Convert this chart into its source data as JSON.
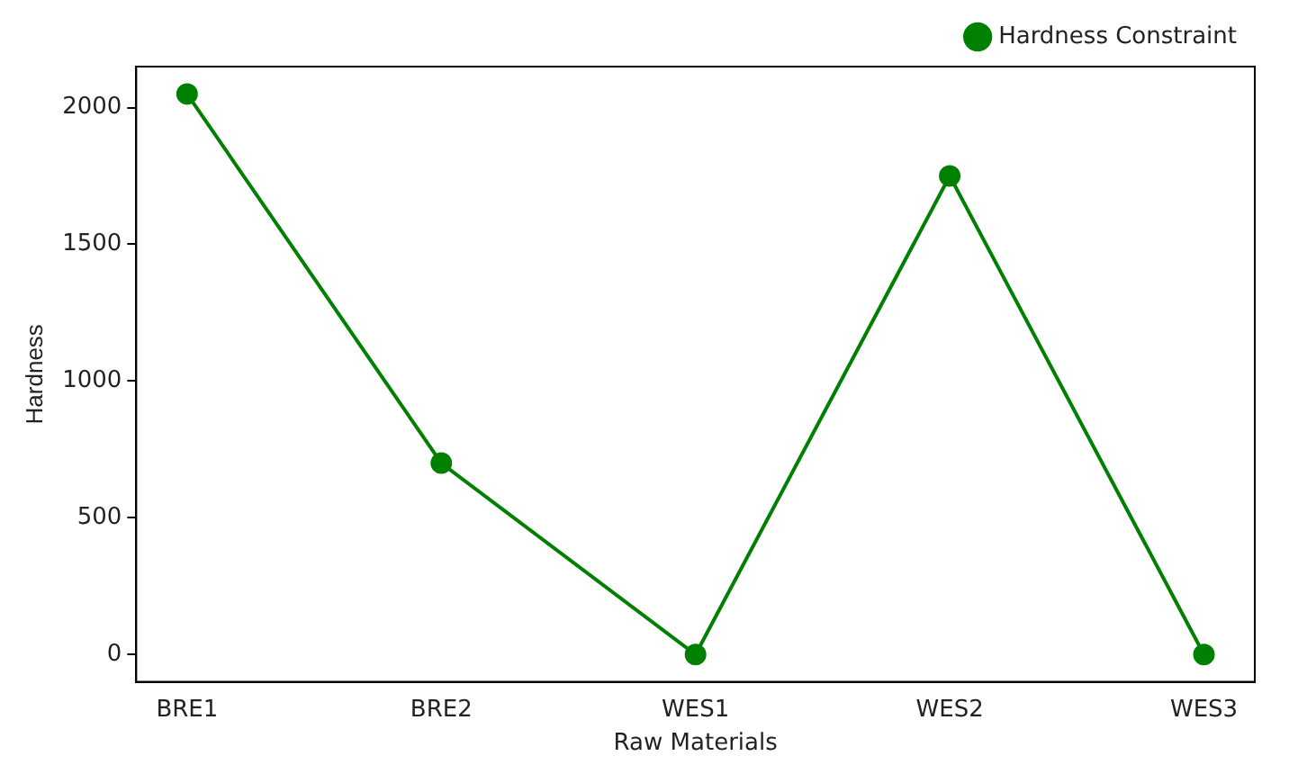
{
  "chart_data": {
    "type": "line",
    "xlabel": "Raw Materials",
    "ylabel": "Hardness",
    "categories": [
      "BRE1",
      "BRE2",
      "WES1",
      "WES2",
      "WES3"
    ],
    "series": [
      {
        "name": "Hardness Constraint",
        "color": "#008000",
        "values": [
          2050,
          700,
          0,
          1750,
          0
        ]
      }
    ],
    "ylim": [
      -100,
      2150
    ],
    "yticks": [
      0,
      500,
      1000,
      1500,
      2000
    ],
    "marker": "circle",
    "line_style": "solid",
    "grid": false,
    "legend": "top right"
  }
}
